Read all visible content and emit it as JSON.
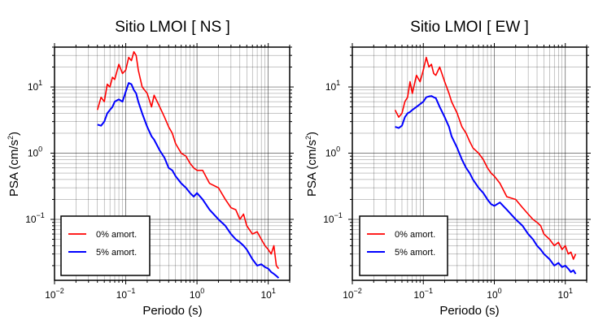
{
  "chart_data": [
    {
      "type": "line",
      "title": "Sitio LMOI [ NS ]",
      "xlabel": "Periodo (s)",
      "ylabel": "PSA (cm/s",
      "ylabel_sup": "2",
      "ylabel_close": ")",
      "xscale": "log",
      "yscale": "log",
      "xlim": [
        0.01,
        20
      ],
      "ylim": [
        0.012,
        40
      ],
      "grid": true,
      "legend_position": "bottom-left",
      "x_ticks": [
        {
          "base": "10",
          "exp": "−2"
        },
        {
          "base": "10",
          "exp": "−1"
        },
        {
          "base": "10",
          "exp": "0"
        },
        {
          "base": "10",
          "exp": "1"
        }
      ],
      "y_ticks": [
        {
          "base": "10",
          "exp": "−1"
        },
        {
          "base": "10",
          "exp": "0"
        },
        {
          "base": "10",
          "exp": "1"
        }
      ],
      "series": [
        {
          "name": "0% amort.",
          "color": "#ff0000",
          "x": [
            0.04,
            0.045,
            0.05,
            0.055,
            0.06,
            0.065,
            0.07,
            0.08,
            0.09,
            0.1,
            0.11,
            0.12,
            0.13,
            0.14,
            0.15,
            0.17,
            0.2,
            0.23,
            0.25,
            0.3,
            0.35,
            0.4,
            0.45,
            0.5,
            0.6,
            0.7,
            0.8,
            0.9,
            1.0,
            1.2,
            1.5,
            2,
            2.5,
            3,
            3.5,
            4,
            4.5,
            5,
            6,
            7,
            8,
            9,
            10,
            11,
            12,
            13,
            14
          ],
          "values": [
            4.5,
            7.0,
            6.0,
            11.0,
            10.0,
            14.0,
            13.0,
            22.0,
            16.0,
            18.0,
            28.0,
            25.0,
            34.0,
            30.0,
            18.0,
            10.0,
            8.0,
            5.0,
            7.5,
            5.0,
            3.5,
            2.5,
            2.0,
            1.4,
            1.0,
            0.9,
            0.7,
            0.6,
            0.55,
            0.55,
            0.35,
            0.3,
            0.2,
            0.15,
            0.14,
            0.1,
            0.12,
            0.08,
            0.06,
            0.065,
            0.05,
            0.04,
            0.035,
            0.03,
            0.04,
            0.02,
            0.018
          ]
        },
        {
          "name": "5% amort.",
          "color": "#0000ff",
          "x": [
            0.04,
            0.045,
            0.05,
            0.055,
            0.06,
            0.065,
            0.07,
            0.08,
            0.09,
            0.1,
            0.11,
            0.12,
            0.13,
            0.14,
            0.15,
            0.17,
            0.2,
            0.23,
            0.25,
            0.3,
            0.35,
            0.4,
            0.45,
            0.5,
            0.6,
            0.7,
            0.8,
            0.9,
            1.0,
            1.2,
            1.5,
            2,
            2.5,
            3,
            3.5,
            4,
            4.5,
            5,
            6,
            7,
            8,
            9,
            10,
            11,
            12,
            13,
            14
          ],
          "values": [
            2.7,
            2.6,
            3.0,
            4.0,
            4.5,
            5.0,
            6.0,
            6.5,
            6.0,
            8.5,
            11.5,
            11.0,
            9.0,
            8.0,
            6.0,
            4.0,
            2.5,
            1.8,
            1.6,
            1.1,
            0.85,
            0.6,
            0.55,
            0.45,
            0.35,
            0.3,
            0.25,
            0.22,
            0.25,
            0.2,
            0.14,
            0.1,
            0.08,
            0.06,
            0.05,
            0.045,
            0.04,
            0.035,
            0.025,
            0.02,
            0.021,
            0.019,
            0.018,
            0.016,
            0.015,
            0.014,
            0.013
          ]
        }
      ]
    },
    {
      "type": "line",
      "title": "Sitio LMOI [ EW ]",
      "xlabel": "Periodo (s)",
      "ylabel": "PSA (cm/s",
      "ylabel_sup": "2",
      "ylabel_close": ")",
      "xscale": "log",
      "yscale": "log",
      "xlim": [
        0.01,
        20
      ],
      "ylim": [
        0.012,
        40
      ],
      "grid": true,
      "legend_position": "bottom-left",
      "x_ticks": [
        {
          "base": "10",
          "exp": "−2"
        },
        {
          "base": "10",
          "exp": "−1"
        },
        {
          "base": "10",
          "exp": "0"
        },
        {
          "base": "10",
          "exp": "1"
        }
      ],
      "y_ticks": [
        {
          "base": "10",
          "exp": "−1"
        },
        {
          "base": "10",
          "exp": "0"
        },
        {
          "base": "10",
          "exp": "1"
        }
      ],
      "series": [
        {
          "name": "0% amort.",
          "color": "#ff0000",
          "x": [
            0.04,
            0.045,
            0.05,
            0.055,
            0.06,
            0.065,
            0.07,
            0.08,
            0.09,
            0.1,
            0.11,
            0.12,
            0.13,
            0.14,
            0.15,
            0.17,
            0.2,
            0.23,
            0.25,
            0.3,
            0.35,
            0.4,
            0.45,
            0.5,
            0.6,
            0.7,
            0.8,
            0.9,
            1.0,
            1.2,
            1.5,
            2,
            2.5,
            3,
            3.5,
            4,
            4.5,
            5,
            6,
            7,
            8,
            9,
            10,
            11,
            12,
            13,
            14
          ],
          "values": [
            4.5,
            3.5,
            4.0,
            6.0,
            7.0,
            12.0,
            8.0,
            15.0,
            12.0,
            18.0,
            28.0,
            20.0,
            22.0,
            16.0,
            15.0,
            20.0,
            12.0,
            8.0,
            6.0,
            4.0,
            2.5,
            2.0,
            1.5,
            1.2,
            1.0,
            0.8,
            0.6,
            0.5,
            0.45,
            0.35,
            0.22,
            0.2,
            0.15,
            0.12,
            0.1,
            0.09,
            0.08,
            0.06,
            0.05,
            0.04,
            0.045,
            0.035,
            0.04,
            0.03,
            0.032,
            0.025,
            0.03
          ]
        },
        {
          "name": "5% amort.",
          "color": "#0000ff",
          "x": [
            0.04,
            0.045,
            0.05,
            0.055,
            0.06,
            0.065,
            0.07,
            0.08,
            0.09,
            0.1,
            0.11,
            0.12,
            0.13,
            0.14,
            0.15,
            0.17,
            0.2,
            0.23,
            0.25,
            0.3,
            0.35,
            0.4,
            0.45,
            0.5,
            0.6,
            0.7,
            0.8,
            0.9,
            1.0,
            1.2,
            1.5,
            2,
            2.5,
            3,
            3.5,
            4,
            4.5,
            5,
            6,
            7,
            8,
            9,
            10,
            11,
            12,
            13,
            14
          ],
          "values": [
            2.5,
            2.4,
            2.6,
            3.5,
            4.0,
            4.2,
            4.5,
            5.0,
            5.5,
            6.0,
            7.0,
            7.2,
            7.3,
            7.0,
            6.8,
            5.0,
            3.5,
            2.5,
            1.8,
            1.2,
            0.8,
            0.6,
            0.5,
            0.4,
            0.3,
            0.25,
            0.2,
            0.17,
            0.16,
            0.18,
            0.14,
            0.1,
            0.08,
            0.06,
            0.05,
            0.04,
            0.035,
            0.03,
            0.025,
            0.02,
            0.022,
            0.019,
            0.02,
            0.018,
            0.016,
            0.017,
            0.015
          ]
        }
      ]
    }
  ]
}
